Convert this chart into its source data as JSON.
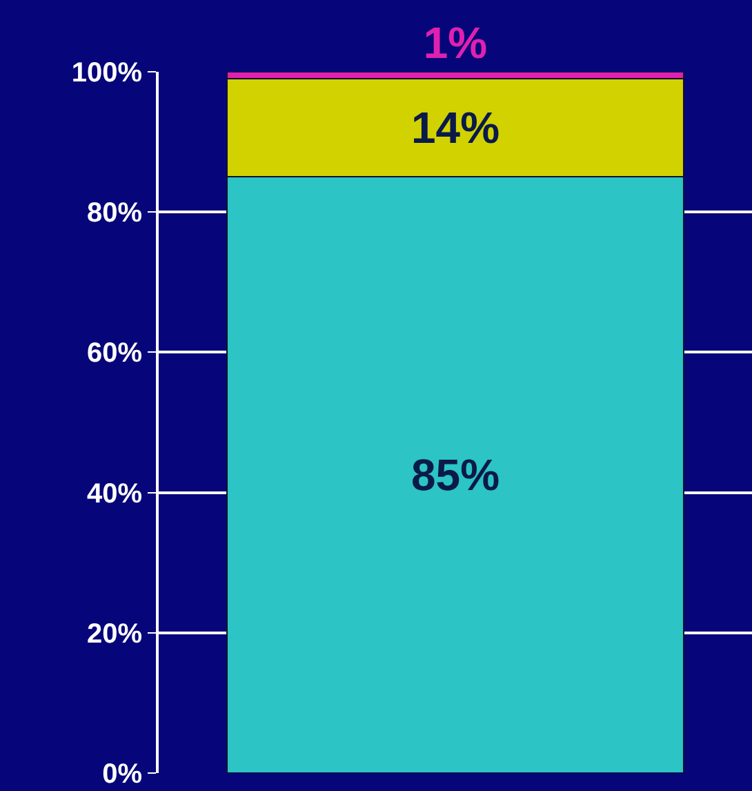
{
  "chart_data": {
    "type": "bar",
    "stacked": true,
    "categories": [
      null
    ],
    "series": [
      {
        "color": "#2cc4c4",
        "values": [
          85
        ],
        "value_labels": [
          "85%"
        ]
      },
      {
        "color": "#d2d200",
        "values": [
          14
        ],
        "value_labels": [
          "14%"
        ]
      },
      {
        "color": "#e020b0",
        "values": [
          1
        ],
        "value_labels": [
          "1%"
        ]
      }
    ],
    "ylim": [
      0,
      100
    ],
    "yticks": [
      {
        "value": 0,
        "label": "0%"
      },
      {
        "value": 20,
        "label": "20%"
      },
      {
        "value": 40,
        "label": "40%"
      },
      {
        "value": 60,
        "label": "60%"
      },
      {
        "value": 80,
        "label": "80%"
      },
      {
        "value": 100,
        "label": "100%"
      }
    ],
    "grid": "y"
  }
}
